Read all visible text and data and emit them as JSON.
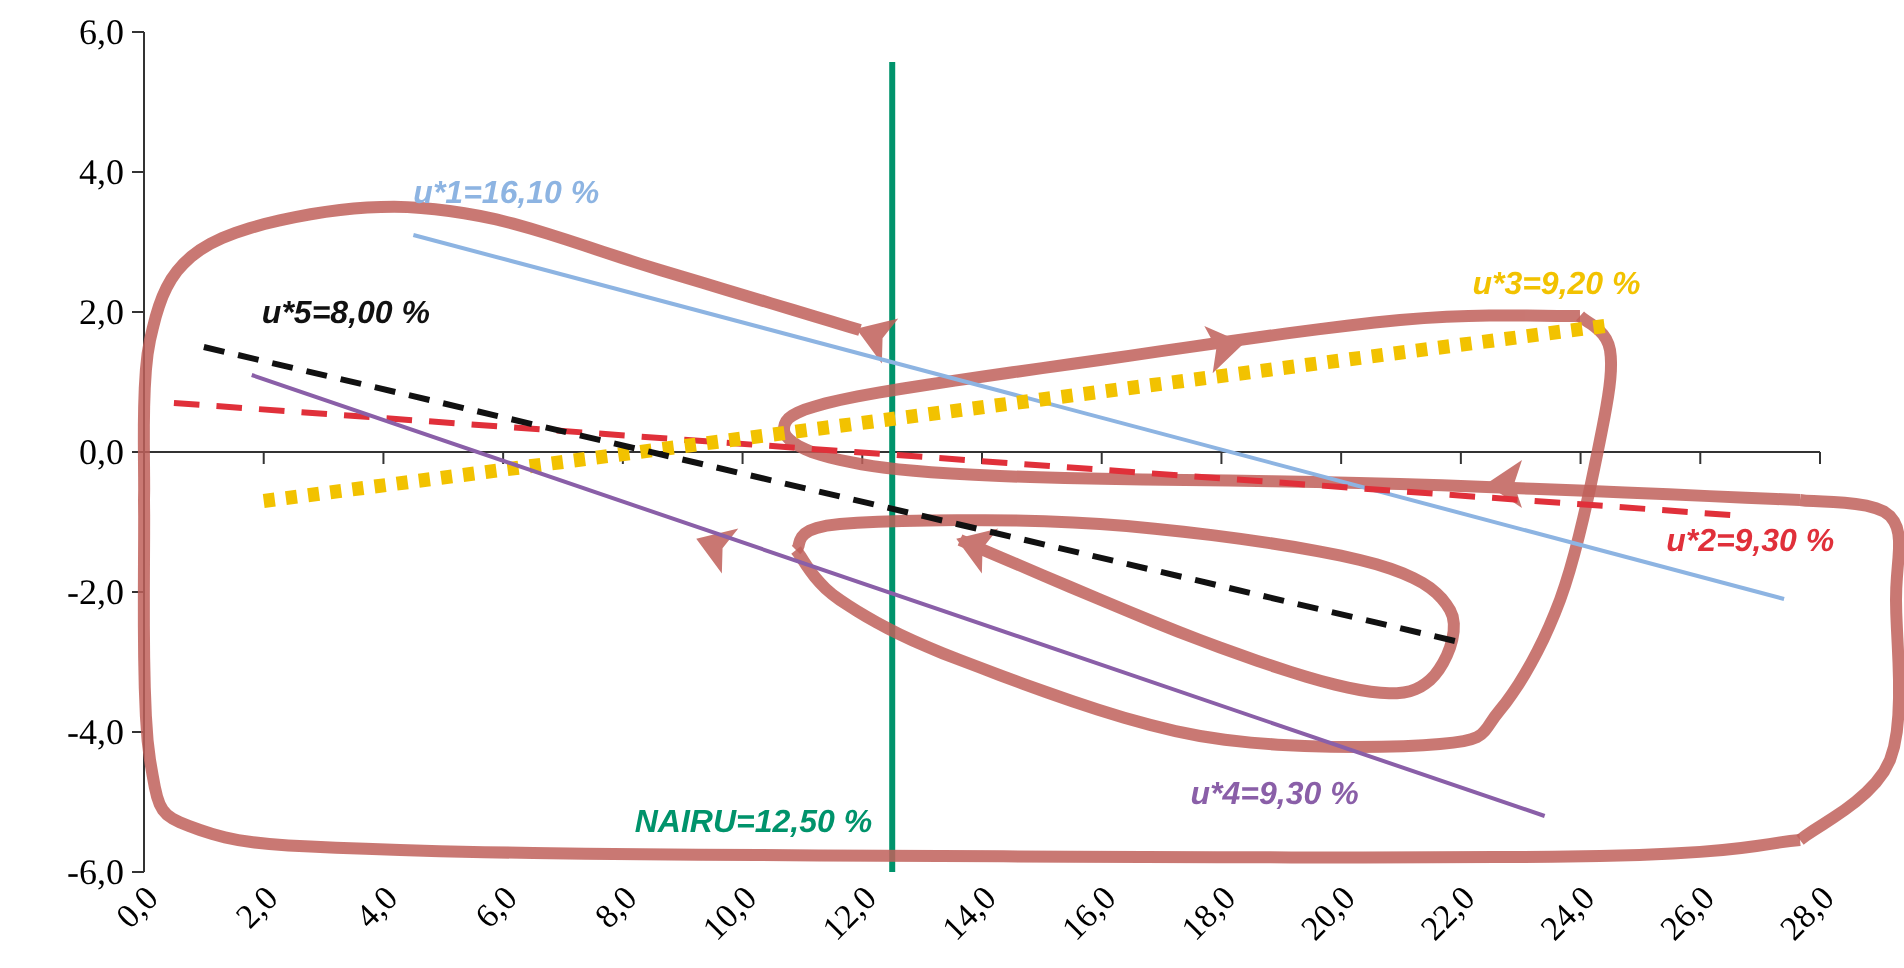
{
  "chart_data": {
    "type": "line",
    "xlim": [
      0,
      28
    ],
    "xticks": [
      {
        "value": 0,
        "label": "0,0"
      },
      {
        "value": 2,
        "label": "2,0"
      },
      {
        "value": 4,
        "label": "4,0"
      },
      {
        "value": 6,
        "label": "6,0"
      },
      {
        "value": 8,
        "label": "8,0"
      },
      {
        "value": 10,
        "label": "10,0"
      },
      {
        "value": 12,
        "label": "12,0"
      },
      {
        "value": 14,
        "label": "14,0"
      },
      {
        "value": 16,
        "label": "16,0"
      },
      {
        "value": 18,
        "label": "18,0"
      },
      {
        "value": 20,
        "label": "20,0"
      },
      {
        "value": 22,
        "label": "22,0"
      },
      {
        "value": 24,
        "label": "24,0"
      },
      {
        "value": 26,
        "label": "26,0"
      },
      {
        "value": 28,
        "label": "28,0"
      }
    ],
    "ylim": [
      -6,
      6
    ],
    "yticks": [
      {
        "value": -6,
        "label": "-6,0"
      },
      {
        "value": -4,
        "label": "-4,0"
      },
      {
        "value": -2,
        "label": "-2,0"
      },
      {
        "value": 0,
        "label": "0,0"
      },
      {
        "value": 2,
        "label": "2,0"
      },
      {
        "value": 4,
        "label": "4,0"
      },
      {
        "value": 6,
        "label": "6,0"
      }
    ],
    "series": [
      {
        "name": "u*1=16,10 %",
        "color": "#8db4e2",
        "x": [
          4.5,
          27.4
        ],
        "values": [
          3.1,
          -2.1
        ],
        "line_style": "solid"
      },
      {
        "name": "u*2=9,30 %",
        "color": "#e0303a",
        "x": [
          0.5,
          26.5
        ],
        "values": [
          0.7,
          -0.9
        ],
        "line_style": "dashed"
      },
      {
        "name": "u*3=9,20 %",
        "color": "#f2c200",
        "x": [
          2.0,
          24.4
        ],
        "values": [
          -0.7,
          1.8
        ],
        "line_style": "dotted"
      },
      {
        "name": "u*4=9,30 %",
        "color": "#8a5fa8",
        "x": [
          1.8,
          23.4
        ],
        "values": [
          1.1,
          -5.2
        ],
        "line_style": "solid"
      },
      {
        "name": "u*5=8,00 %",
        "color": "#111111",
        "x": [
          1.0,
          21.9
        ],
        "values": [
          1.5,
          -2.7
        ],
        "line_style": "dashed"
      }
    ],
    "ref_lines": [
      {
        "axis": "x",
        "value": 12.5,
        "label": "NAIRU=12,50 %",
        "color": "#00936b"
      }
    ]
  }
}
